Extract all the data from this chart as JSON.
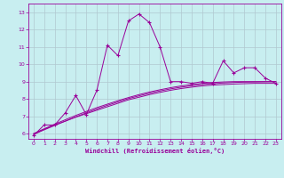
{
  "xlabel": "Windchill (Refroidissement éolien,°C)",
  "bg_color": "#c8eef0",
  "line_color": "#990099",
  "grid_color": "#b0c8d0",
  "xlim": [
    -0.5,
    23.5
  ],
  "ylim": [
    5.7,
    13.5
  ],
  "xticks": [
    0,
    1,
    2,
    3,
    4,
    5,
    6,
    7,
    8,
    9,
    10,
    11,
    12,
    13,
    14,
    15,
    16,
    17,
    18,
    19,
    20,
    21,
    22,
    23
  ],
  "yticks": [
    6,
    7,
    8,
    9,
    10,
    11,
    12,
    13
  ],
  "main_line_x": [
    0,
    1,
    2,
    3,
    4,
    5,
    6,
    7,
    8,
    9,
    10,
    11,
    12,
    13,
    14,
    15,
    16,
    17,
    18,
    19,
    20,
    21,
    22,
    23
  ],
  "main_line_y": [
    5.9,
    6.5,
    6.5,
    7.2,
    8.2,
    7.1,
    8.5,
    11.1,
    10.5,
    12.5,
    12.9,
    12.4,
    11.0,
    9.0,
    9.0,
    8.9,
    9.0,
    8.9,
    10.2,
    9.5,
    9.8,
    9.8,
    9.2,
    8.9
  ],
  "smooth_lines": [
    [
      6.0,
      6.25,
      6.5,
      6.72,
      6.95,
      7.15,
      7.35,
      7.55,
      7.75,
      7.95,
      8.1,
      8.25,
      8.38,
      8.5,
      8.6,
      8.68,
      8.75,
      8.8,
      8.83,
      8.86,
      8.88,
      8.9,
      8.9,
      8.9
    ],
    [
      6.0,
      6.28,
      6.55,
      6.8,
      7.05,
      7.28,
      7.5,
      7.7,
      7.9,
      8.08,
      8.25,
      8.4,
      8.53,
      8.65,
      8.75,
      8.83,
      8.9,
      8.95,
      8.98,
      9.0,
      9.0,
      9.0,
      9.0,
      9.0
    ],
    [
      5.95,
      6.22,
      6.47,
      6.72,
      6.97,
      7.2,
      7.42,
      7.63,
      7.83,
      8.02,
      8.18,
      8.33,
      8.46,
      8.58,
      8.68,
      8.76,
      8.83,
      8.88,
      8.92,
      8.95,
      8.97,
      8.98,
      8.99,
      9.0
    ]
  ]
}
